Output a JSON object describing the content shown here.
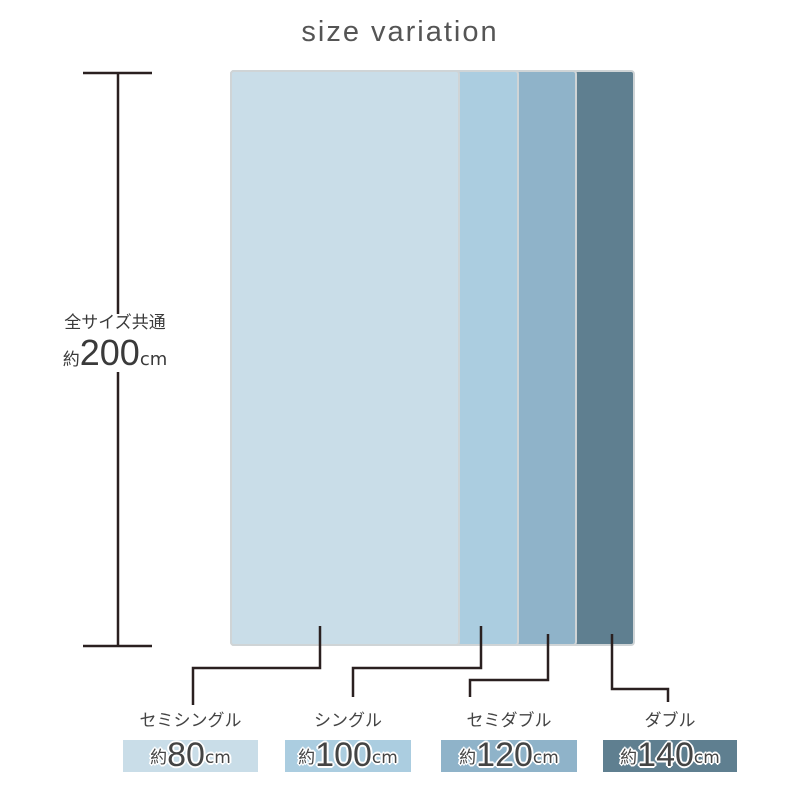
{
  "title": "size variation",
  "length": {
    "caption": "全サイズ共通",
    "prefix": "約",
    "value": "200",
    "unit": "cm"
  },
  "sizes": [
    {
      "name": "セミシングル",
      "prefix": "約",
      "value": "80",
      "unit": "cm",
      "color": "#c9dde8"
    },
    {
      "name": "シングル",
      "prefix": "約",
      "value": "100",
      "unit": "cm",
      "color": "#abcde0"
    },
    {
      "name": "セミダブル",
      "prefix": "約",
      "value": "120",
      "unit": "cm",
      "color": "#8fb3c9"
    },
    {
      "name": "ダブル",
      "prefix": "約",
      "value": "140",
      "unit": "cm",
      "color": "#5f7f90"
    }
  ]
}
